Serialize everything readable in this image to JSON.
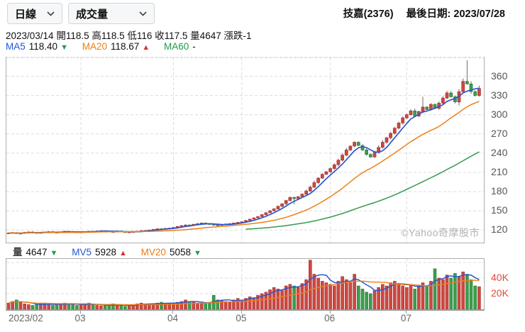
{
  "toolbar": {
    "period_dropdown": "日線",
    "indicator_dropdown": "成交量"
  },
  "header": {
    "stock": "技嘉(2376)",
    "last_date": "最後日期: 2023/07/28"
  },
  "quote_line": "2023/03/14 開118.5 高118.5 低116 收117.5 量4647 漲跌-1",
  "ma_legend": {
    "ma5_label": "MA5",
    "ma5_value": "118.40",
    "ma5_arrow": "▼",
    "ma20_label": "MA20",
    "ma20_value": "118.67",
    "ma20_arrow": "▲",
    "ma60_label": "MA60",
    "ma60_value": "-"
  },
  "volume_legend": {
    "vol_label": "量",
    "vol_value": "4647",
    "vol_arrow": "▼",
    "mv5_label": "MV5",
    "mv5_value": "5928",
    "mv5_arrow": "▲",
    "mv20_label": "MV20",
    "mv20_value": "5058",
    "mv20_arrow": "▼"
  },
  "watermark": "©Yahoo奇摩股市",
  "colors": {
    "up": "#ce4841",
    "up_border": "#a6322e",
    "down": "#3c9e4d",
    "down_border": "#2b7c3a",
    "wick": "#6e6e6e",
    "ma5": "#2b57cf",
    "ma20": "#ef7f17",
    "ma60": "#35994f",
    "grid": "#dcdcdc",
    "border": "#adadad",
    "axis_text": "#555555",
    "volume_axis_text": "#e2493d",
    "arrow_up": "#d6342c",
    "arrow_down": "#1e9e4a"
  },
  "chart_data": {
    "type": "candlestick",
    "title": "技嘉(2376) 日線 成交量 2023/02 - 2023/07/28",
    "x_axis": {
      "labels": [
        "2023/02",
        "03",
        "04",
        "05",
        "06",
        "07"
      ],
      "month_start_indices": [
        0,
        18,
        41,
        58,
        80,
        99
      ]
    },
    "price_axis": {
      "tick_values": [
        120,
        150,
        180,
        210,
        240,
        270,
        300,
        330,
        360
      ],
      "range": [
        100,
        390
      ],
      "grid_top_value": 390
    },
    "volume_axis": {
      "tick_labels": [
        "20K",
        "40K"
      ],
      "tick_values_thousands": [
        20,
        40
      ],
      "grid_values_thousands": [
        20,
        40,
        60
      ],
      "range_thousands": [
        0,
        66
      ]
    },
    "first_open": 115,
    "closes": [
      115.5,
      116,
      114.5,
      115,
      116.5,
      117,
      116,
      115.5,
      116,
      117,
      117.5,
      116.5,
      116,
      117,
      118,
      117.5,
      117,
      116.5,
      117,
      117.5,
      118,
      117.5,
      118.5,
      119,
      118.5,
      117.5,
      117,
      118.5,
      117.5,
      116.5,
      117,
      117.5,
      118,
      119,
      119.5,
      120,
      121,
      122,
      121.5,
      122.5,
      123,
      124,
      125.5,
      127,
      128,
      127.5,
      129,
      130,
      131,
      130,
      129,
      128,
      127.5,
      128.5,
      129.5,
      130,
      131,
      132,
      133,
      135,
      137,
      139,
      141,
      144,
      147,
      150,
      153,
      157,
      161,
      166,
      171,
      169,
      172,
      176,
      181,
      187,
      194,
      201,
      207,
      211,
      216,
      222,
      229,
      237,
      245,
      251,
      257,
      252,
      245,
      238,
      234,
      241,
      249,
      257,
      264,
      271,
      279,
      287,
      295,
      300,
      306,
      298,
      305,
      312,
      308,
      316,
      310,
      318,
      326,
      334,
      328,
      320,
      336,
      352,
      348,
      336,
      330,
      341
    ],
    "volumes_thousands": [
      8,
      10,
      12,
      9,
      7,
      6,
      5,
      6,
      7,
      8,
      6,
      5,
      6,
      7,
      8,
      7,
      6,
      5,
      6,
      7,
      8,
      6,
      5,
      4.6,
      5,
      6,
      7,
      4.6,
      5,
      4,
      5,
      6,
      7,
      8,
      7,
      6,
      7,
      8,
      9,
      8,
      7,
      8,
      9,
      10,
      12,
      10,
      9,
      8,
      7,
      8,
      9,
      18,
      12,
      11,
      10,
      9,
      12,
      14,
      12,
      14,
      16,
      15,
      18,
      20,
      22,
      25,
      28,
      26,
      24,
      30,
      32,
      30,
      28,
      33,
      38,
      63,
      45,
      40,
      36,
      34,
      32,
      30,
      36,
      42,
      38,
      34,
      45,
      30,
      26,
      22,
      20,
      24,
      28,
      32,
      30,
      34,
      36,
      32,
      30,
      28,
      32,
      26,
      30,
      34,
      30,
      36,
      52,
      40,
      38,
      44,
      40,
      46,
      42,
      48,
      45,
      38,
      30,
      29
    ],
    "wick_overrides": {
      "71": {
        "low": 160
      },
      "103": {
        "high": 328
      },
      "114": {
        "high": 385
      }
    },
    "moving_averages": {
      "price": [
        "MA5",
        "MA20",
        "MA60"
      ],
      "volume": [
        "MV5",
        "MV20"
      ]
    },
    "up_means": "rise(red)",
    "down_means": "fall(green)"
  }
}
